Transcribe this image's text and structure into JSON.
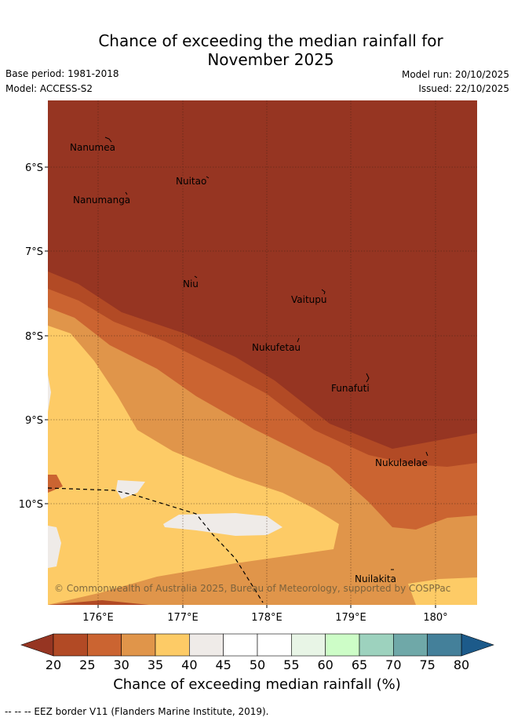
{
  "title_line1": "Chance of exceeding the median rainfall for",
  "title_line2": "November 2025",
  "meta": {
    "base_period": "Base period: 1981-2018",
    "model": "Model: ACCESS-S2",
    "model_run": "Model run: 20/10/2025",
    "issued": "Issued: 22/10/2025"
  },
  "map": {
    "lon_ticks": [
      "176°E",
      "177°E",
      "178°E",
      "179°E",
      "180°"
    ],
    "lat_ticks": [
      "6°S",
      "7°S",
      "8°S",
      "9°S",
      "10°S"
    ],
    "places": [
      "Nanumea",
      "Nuitao",
      "Nanumanga",
      "Niu",
      "Vaitupu",
      "Nukufetau",
      "Funafuti",
      "Nukulaelae",
      "Nuilakita"
    ],
    "copyright": "© Commonwealth of Australia 2025, Bureau of Meteorology, supported by COSPPac"
  },
  "colorbar": {
    "ticks": [
      "20",
      "25",
      "30",
      "35",
      "40",
      "45",
      "50",
      "55",
      "60",
      "65",
      "70",
      "75",
      "80"
    ],
    "colors": [
      "#b24a25",
      "#cb6431",
      "#e0954a",
      "#fdcb66",
      "#efebe8",
      "#ffffff",
      "#ffffff",
      "#e8f5e6",
      "#cdfdc7",
      "#9dd2be",
      "#6fa8a8",
      "#44809a"
    ],
    "under_color": "#963522",
    "over_color": "#1c5a8a",
    "label": "Chance of exceeding median rainfall (%)"
  },
  "footnote": "-- -- -- EEZ border V11 (Flanders Marine Institute, 2019)."
}
